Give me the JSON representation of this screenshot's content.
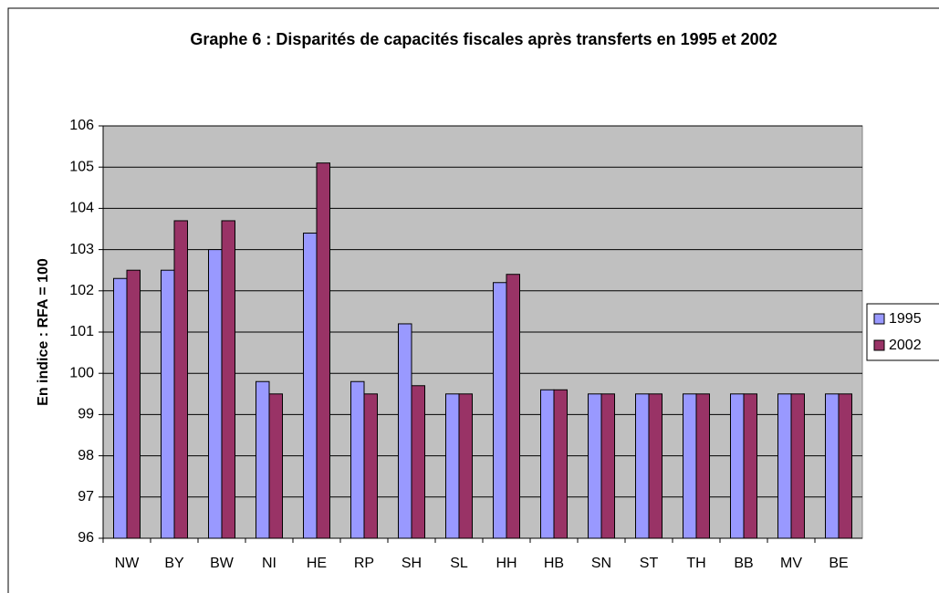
{
  "chart_data": {
    "type": "bar",
    "title": "Graphe 6 : Disparités de capacités fiscales après transferts en 1995 et 2002",
    "y_label": "En indice : RFA = 100",
    "categories": [
      "NW",
      "BY",
      "BW",
      "NI",
      "HE",
      "RP",
      "SH",
      "SL",
      "HH",
      "HB",
      "SN",
      "ST",
      "TH",
      "BB",
      "MV",
      "BE"
    ],
    "series": [
      {
        "name": "1995",
        "color": "#9999ff",
        "values": [
          102.3,
          102.5,
          103.0,
          99.8,
          103.4,
          99.8,
          101.2,
          99.5,
          102.2,
          99.6,
          99.5,
          99.5,
          99.5,
          99.5,
          99.5,
          99.5
        ]
      },
      {
        "name": "2002",
        "color": "#993366",
        "values": [
          102.5,
          103.7,
          103.7,
          99.5,
          105.1,
          99.5,
          99.7,
          99.5,
          102.4,
          99.6,
          99.5,
          99.5,
          99.5,
          99.5,
          99.5,
          99.5
        ]
      }
    ],
    "ylim": [
      96,
      106
    ],
    "yticks": [
      96,
      97,
      98,
      99,
      100,
      101,
      102,
      103,
      104,
      105,
      106
    ],
    "grid": true,
    "legend": "right",
    "plot_background": "#c0c0c0"
  }
}
